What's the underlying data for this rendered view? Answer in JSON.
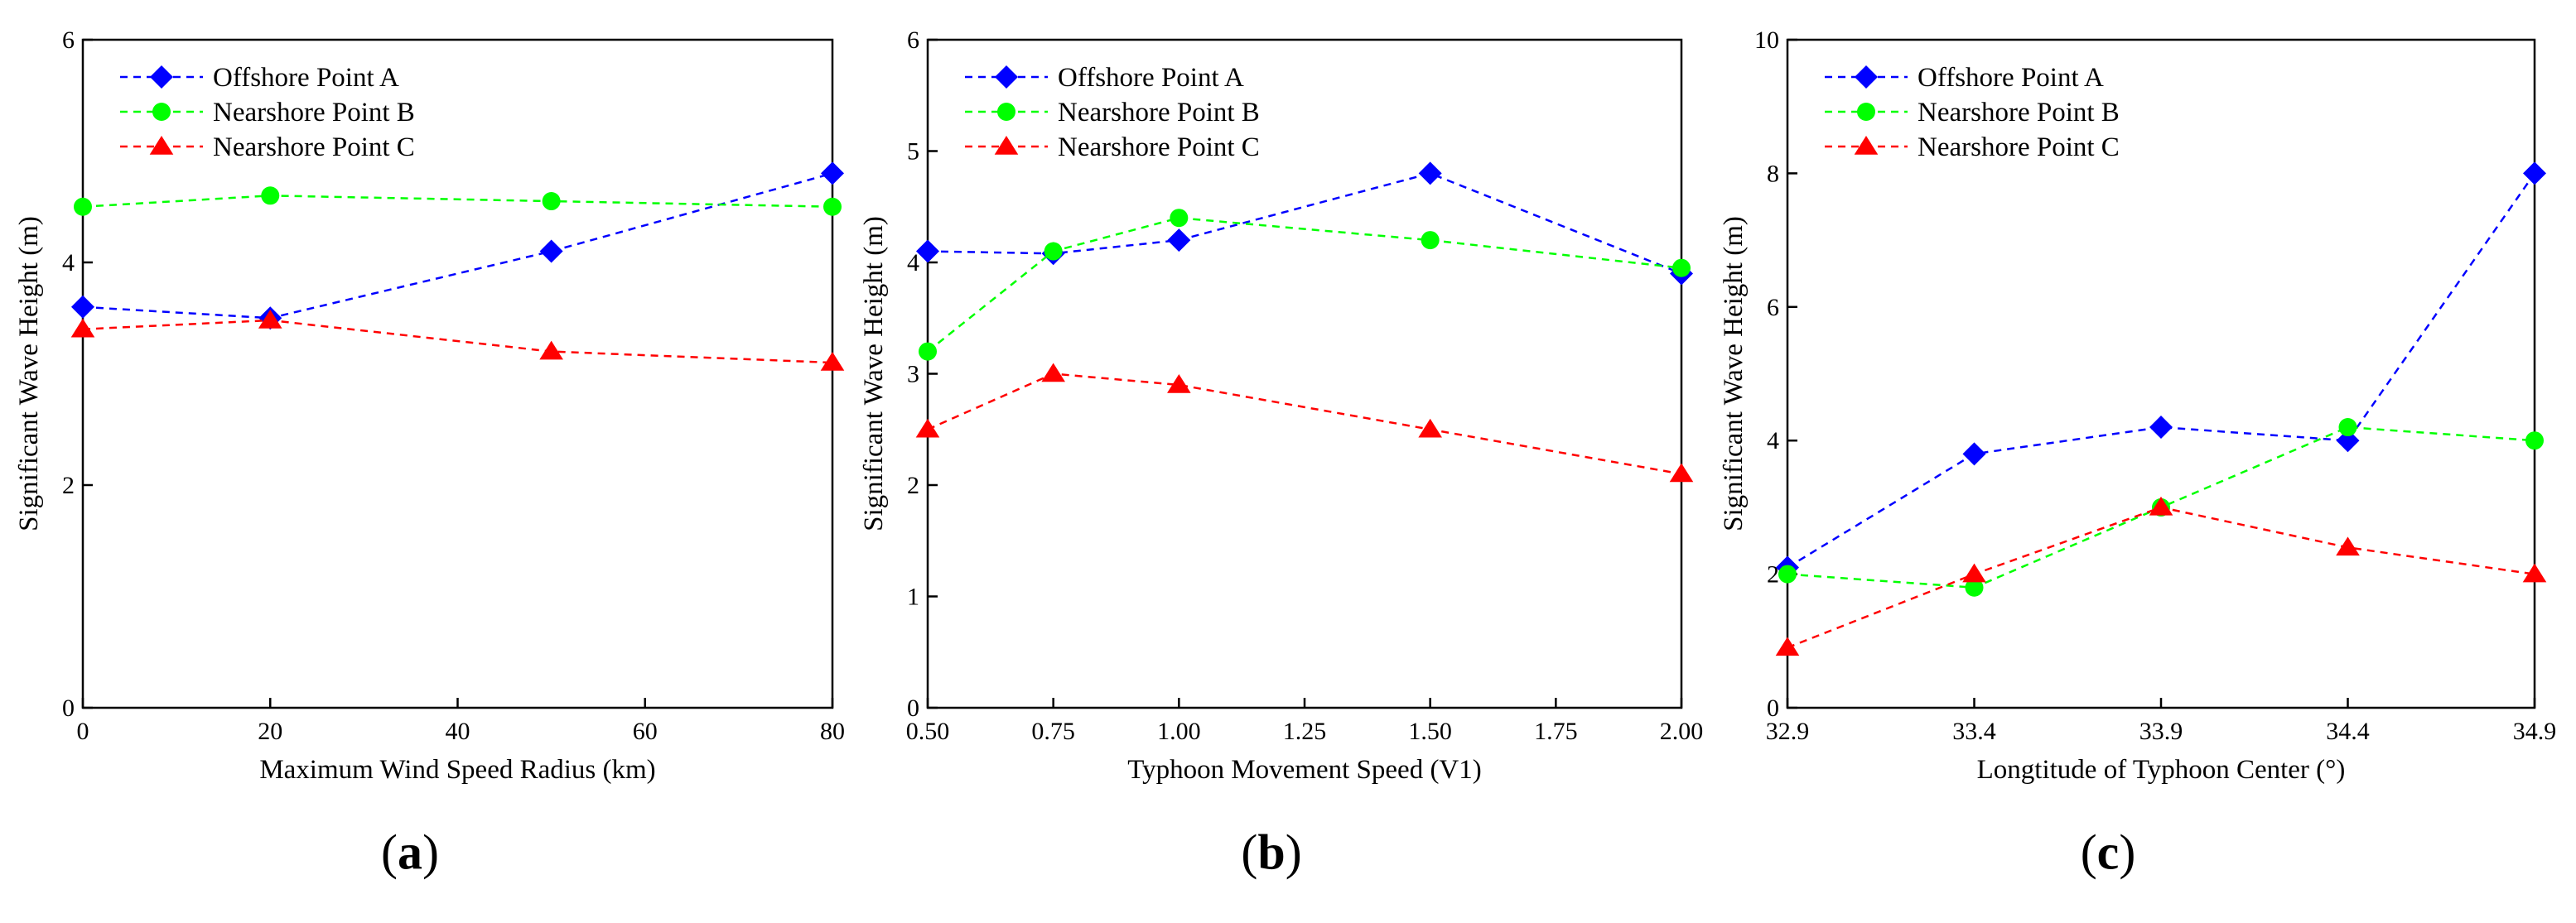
{
  "chart_data": [
    {
      "type": "line",
      "panel_label": "a",
      "xlabel": "Maximum Wind Speed Radius (km)",
      "ylabel": "Significant Wave Height (m)",
      "xlim": [
        0,
        80
      ],
      "ylim": [
        0,
        6
      ],
      "xticks": [
        0,
        20,
        40,
        60,
        80
      ],
      "xtick_labels": [
        "0",
        "20",
        "40",
        "60",
        "80"
      ],
      "yticks": [
        0,
        2,
        4,
        6
      ],
      "ytick_labels": [
        "0",
        "2",
        "4",
        "6"
      ],
      "grid": false,
      "legend_position": "top-left",
      "x": [
        0,
        20,
        50,
        80
      ],
      "series": [
        {
          "name": "Offshore Point A",
          "color": "#0000ff",
          "marker": "diamond",
          "values": [
            3.6,
            3.5,
            4.1,
            4.8
          ]
        },
        {
          "name": "Nearshore Point B",
          "color": "#00ff00",
          "marker": "circle",
          "values": [
            4.5,
            4.6,
            4.55,
            4.5
          ]
        },
        {
          "name": "Nearshore Point C",
          "color": "#ff0000",
          "marker": "triangle",
          "values": [
            3.4,
            3.48,
            3.2,
            3.1
          ]
        }
      ]
    },
    {
      "type": "line",
      "panel_label": "b",
      "xlabel": "Typhoon Movement Speed (V1)",
      "ylabel": "Significant Wave Height (m)",
      "xlim": [
        0.5,
        2.0
      ],
      "ylim": [
        0,
        6
      ],
      "xticks": [
        0.5,
        0.75,
        1.0,
        1.25,
        1.5,
        1.75,
        2.0
      ],
      "xtick_labels": [
        "0.50",
        "0.75",
        "1.00",
        "1.25",
        "1.50",
        "1.75",
        "2.00"
      ],
      "yticks": [
        0,
        1,
        2,
        3,
        4,
        5,
        6
      ],
      "ytick_labels": [
        "0",
        "1",
        "2",
        "3",
        "4",
        "5",
        "6"
      ],
      "grid": false,
      "legend_position": "top-left",
      "x": [
        0.5,
        0.75,
        1.0,
        1.5,
        2.0
      ],
      "series": [
        {
          "name": "Offshore Point A",
          "color": "#0000ff",
          "marker": "diamond",
          "values": [
            4.1,
            4.08,
            4.2,
            4.8,
            3.9
          ]
        },
        {
          "name": "Nearshore Point B",
          "color": "#00ff00",
          "marker": "circle",
          "values": [
            3.2,
            4.1,
            4.4,
            4.2,
            3.95
          ]
        },
        {
          "name": "Nearshore Point C",
          "color": "#ff0000",
          "marker": "triangle",
          "values": [
            2.5,
            3.0,
            2.9,
            2.5,
            2.1
          ]
        }
      ]
    },
    {
      "type": "line",
      "panel_label": "c",
      "xlabel": "Longtitude of Typhoon Center (°)",
      "ylabel": "Significant Wave Height (m)",
      "xlim": [
        32.9,
        34.9
      ],
      "ylim": [
        0,
        10
      ],
      "xticks": [
        32.9,
        33.4,
        33.9,
        34.4,
        34.9
      ],
      "xtick_labels": [
        "32.9",
        "33.4",
        "33.9",
        "34.4",
        "34.9"
      ],
      "yticks": [
        0,
        2,
        4,
        6,
        8,
        10
      ],
      "ytick_labels": [
        "0",
        "2",
        "4",
        "6",
        "8",
        "10"
      ],
      "grid": false,
      "legend_position": "top-left",
      "x": [
        32.9,
        33.4,
        33.9,
        34.4,
        34.9
      ],
      "series": [
        {
          "name": "Offshore Point A",
          "color": "#0000ff",
          "marker": "diamond",
          "values": [
            2.1,
            3.8,
            4.2,
            4.0,
            8.0
          ]
        },
        {
          "name": "Nearshore Point B",
          "color": "#00ff00",
          "marker": "circle",
          "values": [
            2.0,
            1.8,
            3.0,
            4.2,
            4.0
          ]
        },
        {
          "name": "Nearshore Point C",
          "color": "#ff0000",
          "marker": "triangle",
          "values": [
            0.9,
            2.0,
            3.0,
            2.4,
            2.0
          ]
        }
      ]
    }
  ]
}
